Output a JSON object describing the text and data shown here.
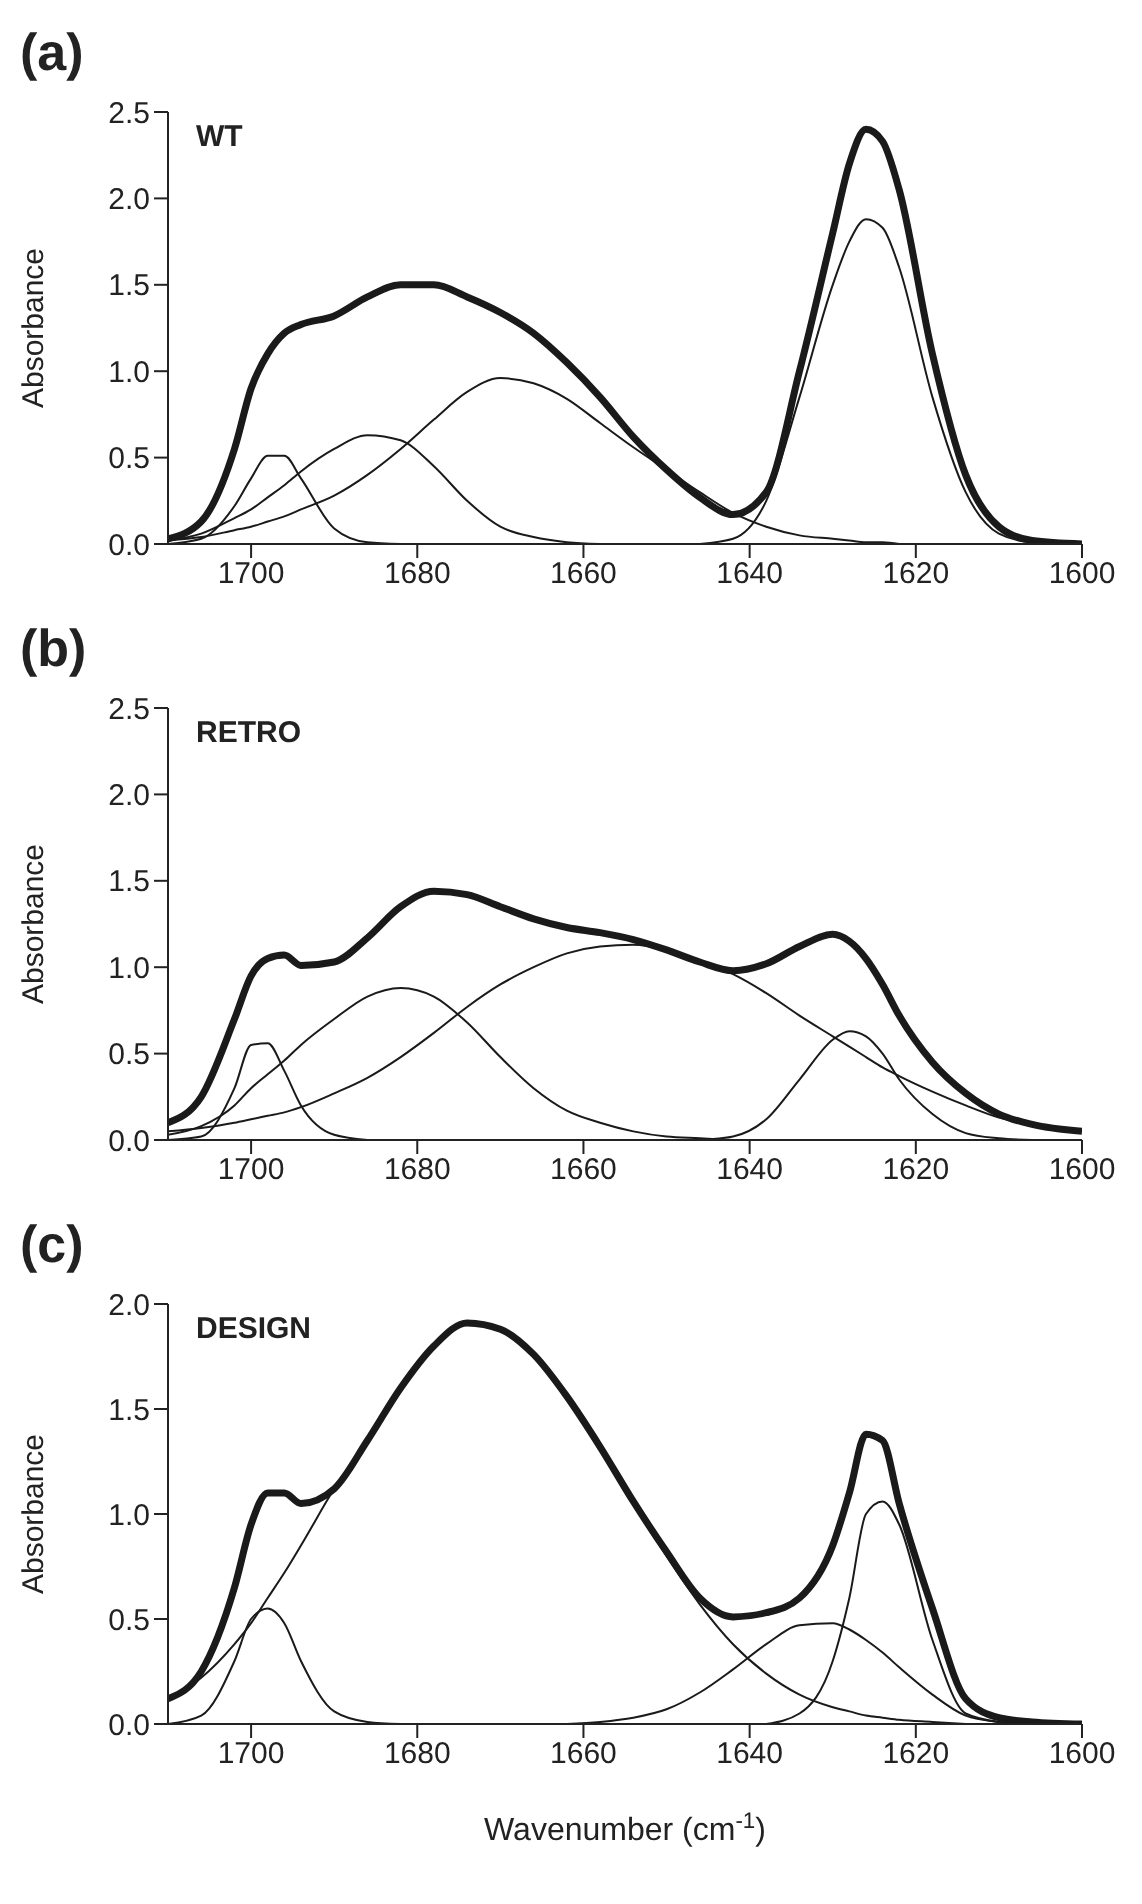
{
  "chart_data": [
    {
      "type": "line",
      "title": "(a)",
      "annotations": [
        "WT"
      ],
      "ylabel": "Absorbance",
      "xlim": [
        1710,
        1600
      ],
      "xticks": [
        1700,
        1680,
        1660,
        1640,
        1620,
        1600
      ],
      "ylim": [
        0,
        2.5
      ],
      "yticks": [
        {
          "value": 0,
          "label": "0.0"
        },
        {
          "value": 0.5,
          "label": "0.5"
        },
        {
          "value": 1,
          "label": "1.0"
        },
        {
          "value": 1.5,
          "label": "1.5"
        },
        {
          "value": 2,
          "label": "2.0"
        },
        {
          "value": 2.5,
          "label": "2.5"
        }
      ],
      "marker": "none",
      "line_style": "solid",
      "x": [
        1710,
        1706,
        1702,
        1700,
        1698,
        1696,
        1694,
        1690,
        1686,
        1682,
        1678,
        1674,
        1670,
        1666,
        1662,
        1658,
        1654,
        1650,
        1646,
        1642,
        1638,
        1634,
        1630,
        1628,
        1626,
        1624,
        1622,
        1618,
        1614,
        1610,
        1606,
        1600
      ],
      "series": [
        {
          "color": "#1a1a1a",
          "values": [
            0.03,
            0.13,
            0.55,
            0.9,
            1.1,
            1.22,
            1.27,
            1.32,
            1.43,
            1.5,
            1.5,
            1.43,
            1.34,
            1.22,
            1.05,
            0.85,
            0.62,
            0.43,
            0.27,
            0.17,
            0.3,
            1.0,
            1.8,
            2.2,
            2.4,
            2.33,
            2.05,
            1.1,
            0.4,
            0.1,
            0.02,
            0
          ]
        },
        {
          "color": "#1a1a1a",
          "values": [
            0,
            0.03,
            0.22,
            0.38,
            0.51,
            0.51,
            0.38,
            0.09,
            0.01,
            0,
            null,
            null,
            null,
            null,
            null,
            null,
            null,
            null,
            null,
            null,
            null,
            null,
            null,
            null,
            null,
            null,
            null,
            null,
            null,
            null,
            null,
            null
          ]
        },
        {
          "color": "#1a1a1a",
          "values": [
            0.02,
            0.06,
            0.15,
            0.2,
            0.27,
            0.34,
            0.42,
            0.55,
            0.63,
            0.6,
            0.45,
            0.25,
            0.1,
            0.04,
            0.01,
            0,
            null,
            null,
            null,
            null,
            null,
            null,
            null,
            null,
            null,
            null,
            null,
            null,
            null,
            null,
            null,
            null
          ]
        },
        {
          "color": "#1a1a1a",
          "values": [
            0.02,
            0.04,
            0.08,
            0.1,
            0.13,
            0.16,
            0.2,
            0.28,
            0.4,
            0.55,
            0.72,
            0.88,
            0.96,
            0.93,
            0.84,
            0.7,
            0.56,
            0.43,
            0.3,
            0.18,
            0.1,
            0.05,
            0.03,
            0.02,
            0.01,
            0.01,
            0,
            null,
            null,
            null,
            null,
            null
          ]
        },
        {
          "color": "#1a1a1a",
          "values": [
            null,
            null,
            null,
            null,
            null,
            null,
            null,
            null,
            null,
            null,
            null,
            null,
            null,
            null,
            null,
            null,
            null,
            null,
            0,
            0.03,
            0.25,
            0.85,
            1.5,
            1.75,
            1.88,
            1.83,
            1.6,
            0.85,
            0.3,
            0.06,
            0.01,
            0
          ]
        }
      ]
    },
    {
      "type": "line",
      "title": "(b)",
      "annotations": [
        "RETRO"
      ],
      "ylabel": "Absorbance",
      "xlim": [
        1710,
        1600
      ],
      "xticks": [
        1700,
        1680,
        1660,
        1640,
        1620,
        1600
      ],
      "ylim": [
        0,
        2.5
      ],
      "yticks": [
        {
          "value": 0,
          "label": "0.0"
        },
        {
          "value": 0.5,
          "label": "0.5"
        },
        {
          "value": 1,
          "label": "1.0"
        },
        {
          "value": 1.5,
          "label": "1.5"
        },
        {
          "value": 2,
          "label": "2.0"
        },
        {
          "value": 2.5,
          "label": "2.5"
        }
      ],
      "marker": "none",
      "line_style": "solid",
      "x": [
        1710,
        1706,
        1702,
        1700,
        1698,
        1696,
        1694,
        1690,
        1686,
        1682,
        1678,
        1674,
        1670,
        1666,
        1662,
        1658,
        1654,
        1650,
        1646,
        1642,
        1638,
        1634,
        1630,
        1628,
        1626,
        1624,
        1622,
        1618,
        1614,
        1610,
        1606,
        1600
      ],
      "series": [
        {
          "color": "#1a1a1a",
          "values": [
            0.1,
            0.25,
            0.7,
            0.95,
            1.05,
            1.07,
            1.01,
            1.03,
            1.17,
            1.35,
            1.44,
            1.42,
            1.35,
            1.28,
            1.23,
            1.2,
            1.16,
            1.1,
            1.03,
            0.98,
            1.02,
            1.12,
            1.19,
            1.15,
            1.05,
            0.9,
            0.72,
            0.45,
            0.27,
            0.15,
            0.09,
            0.05
          ]
        },
        {
          "color": "#1a1a1a",
          "values": [
            0,
            0.02,
            0.3,
            0.55,
            0.56,
            0.4,
            0.2,
            0.03,
            0,
            null,
            null,
            null,
            null,
            null,
            null,
            null,
            null,
            null,
            null,
            null,
            null,
            null,
            null,
            null,
            null,
            null,
            null,
            null,
            null,
            null,
            null,
            null
          ]
        },
        {
          "color": "#1a1a1a",
          "values": [
            0.03,
            0.08,
            0.2,
            0.3,
            0.38,
            0.46,
            0.55,
            0.7,
            0.83,
            0.88,
            0.83,
            0.68,
            0.48,
            0.3,
            0.17,
            0.1,
            0.05,
            0.02,
            0.01,
            0,
            null,
            null,
            null,
            null,
            null,
            null,
            null,
            null,
            null,
            null,
            null,
            null
          ]
        },
        {
          "color": "#1a1a1a",
          "values": [
            0.05,
            0.07,
            0.1,
            0.12,
            0.14,
            0.16,
            0.19,
            0.27,
            0.36,
            0.48,
            0.62,
            0.77,
            0.9,
            1.0,
            1.08,
            1.12,
            1.13,
            1.1,
            1.04,
            0.96,
            0.85,
            0.72,
            0.6,
            0.54,
            0.48,
            0.42,
            0.37,
            0.28,
            0.2,
            0.13,
            0.09,
            0.05
          ]
        },
        {
          "color": "#1a1a1a",
          "values": [
            null,
            null,
            null,
            null,
            null,
            null,
            null,
            null,
            null,
            null,
            null,
            null,
            null,
            null,
            null,
            null,
            null,
            null,
            0,
            0.02,
            0.12,
            0.35,
            0.58,
            0.63,
            0.6,
            0.5,
            0.35,
            0.15,
            0.04,
            0.01,
            0,
            null
          ]
        }
      ]
    },
    {
      "type": "line",
      "title": "(c)",
      "annotations": [
        "DESIGN"
      ],
      "ylabel": "Absorbance",
      "xlabel": "Wavenumber (cm$^{-1}$)",
      "xlim": [
        1710,
        1600
      ],
      "xticks": [
        1700,
        1680,
        1660,
        1640,
        1620,
        1600
      ],
      "ylim": [
        0,
        2
      ],
      "yticks": [
        {
          "value": 0,
          "label": "0.0"
        },
        {
          "value": 0.5,
          "label": "0.5"
        },
        {
          "value": 1,
          "label": "1.0"
        },
        {
          "value": 1.5,
          "label": "1.5"
        },
        {
          "value": 2,
          "label": "2.0"
        }
      ],
      "marker": "none",
      "line_style": "solid",
      "x": [
        1710,
        1706,
        1702,
        1700,
        1698,
        1696,
        1694,
        1690,
        1686,
        1682,
        1678,
        1674,
        1670,
        1666,
        1662,
        1658,
        1654,
        1650,
        1646,
        1642,
        1638,
        1634,
        1630,
        1628,
        1626,
        1624,
        1622,
        1618,
        1614,
        1610,
        1606,
        1600
      ],
      "series": [
        {
          "color": "#1a1a1a",
          "values": [
            0.12,
            0.25,
            0.65,
            0.95,
            1.1,
            1.1,
            1.05,
            1.12,
            1.35,
            1.6,
            1.8,
            1.91,
            1.88,
            1.76,
            1.56,
            1.32,
            1.06,
            0.82,
            0.6,
            0.51,
            0.53,
            0.6,
            0.85,
            1.1,
            1.38,
            1.35,
            1.05,
            0.55,
            0.12,
            0.03,
            0.01,
            0
          ]
        },
        {
          "color": "#1a1a1a",
          "values": [
            0,
            0.04,
            0.3,
            0.5,
            0.55,
            0.48,
            0.3,
            0.06,
            0.01,
            0,
            null,
            null,
            null,
            null,
            null,
            null,
            null,
            null,
            null,
            null,
            null,
            null,
            null,
            null,
            null,
            null,
            null,
            null,
            null,
            null,
            null,
            null
          ]
        },
        {
          "color": "#1a1a1a",
          "values": [
            0.12,
            0.22,
            0.38,
            0.48,
            0.6,
            0.72,
            0.85,
            1.12,
            1.35,
            1.6,
            1.8,
            1.91,
            1.88,
            1.76,
            1.56,
            1.32,
            1.05,
            0.8,
            0.57,
            0.38,
            0.24,
            0.14,
            0.08,
            0.06,
            0.04,
            0.03,
            0.02,
            0.01,
            0,
            null,
            null,
            null
          ]
        },
        {
          "color": "#1a1a1a",
          "values": [
            null,
            null,
            null,
            null,
            null,
            null,
            null,
            null,
            null,
            null,
            null,
            null,
            null,
            null,
            0,
            0.01,
            0.03,
            0.07,
            0.15,
            0.26,
            0.38,
            0.47,
            0.48,
            0.45,
            0.4,
            0.34,
            0.27,
            0.14,
            0.04,
            0.01,
            0,
            null
          ]
        },
        {
          "color": "#1a1a1a",
          "values": [
            null,
            null,
            null,
            null,
            null,
            null,
            null,
            null,
            null,
            null,
            null,
            null,
            null,
            null,
            null,
            null,
            null,
            null,
            null,
            null,
            0,
            0.05,
            0.3,
            0.6,
            1.0,
            1.06,
            0.95,
            0.4,
            0.05,
            0.01,
            0,
            null
          ]
        }
      ]
    }
  ]
}
